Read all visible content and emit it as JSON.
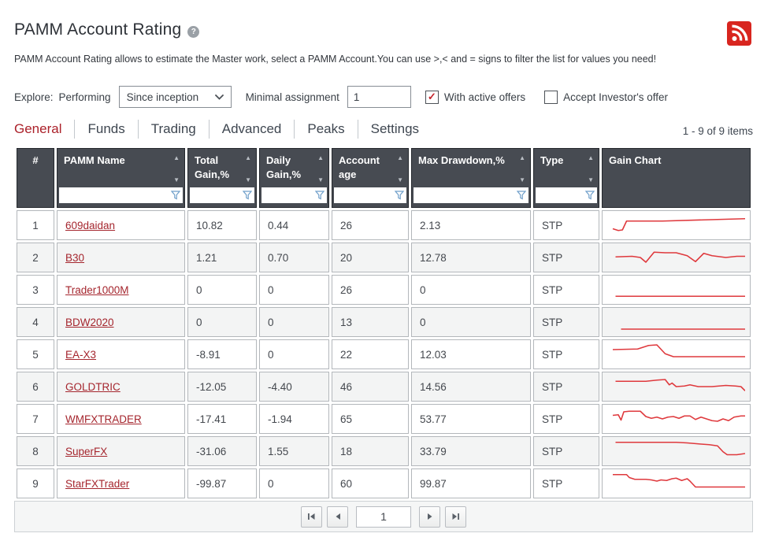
{
  "page": {
    "title": "PAMM Account Rating",
    "description": "PAMM Account Rating allows to estimate the Master work, select a PAMM Account.You can use >,< and = signs to filter the list for values you need!"
  },
  "filters": {
    "explore_label": "Explore:",
    "performing_label": "Performing",
    "period_selected": "Since inception",
    "minimal_assignment_label": "Minimal assignment",
    "minimal_assignment_value": "1",
    "with_active_offers": {
      "label": "With active offers",
      "checked": true,
      "check_glyph": "✓"
    },
    "accept_investors_offer": {
      "label": "Accept Investor's offer",
      "checked": false,
      "check_glyph": "✓"
    }
  },
  "tabs": [
    {
      "label": "General",
      "active": true
    },
    {
      "label": "Funds",
      "active": false
    },
    {
      "label": "Trading",
      "active": false
    },
    {
      "label": "Advanced",
      "active": false
    },
    {
      "label": "Peaks",
      "active": false
    },
    {
      "label": "Settings",
      "active": false
    }
  ],
  "items_count": "1 - 9 of 9 items",
  "table": {
    "columns": [
      {
        "label": "#",
        "sortable": false,
        "filterable": false
      },
      {
        "label": "PAMM Name",
        "sortable": true,
        "filterable": true
      },
      {
        "label": "Total Gain,%",
        "sortable": true,
        "filterable": true
      },
      {
        "label": "Daily Gain,%",
        "sortable": true,
        "filterable": true
      },
      {
        "label": "Account age",
        "sortable": true,
        "filterable": true
      },
      {
        "label": "Max Drawdown,%",
        "sortable": true,
        "filterable": true
      },
      {
        "label": "Type",
        "sortable": true,
        "filterable": true
      },
      {
        "label": "Gain Chart",
        "sortable": false,
        "filterable": false
      }
    ],
    "sort_icons": {
      "asc": "▲",
      "desc": "▼"
    },
    "rows": [
      {
        "num": "1",
        "name": "609daidan",
        "total_gain": "10.82",
        "daily_gain": "0.44",
        "account_age": "26",
        "max_drawdown": "2.13",
        "type": "STP",
        "spark": [
          [
            4,
            26
          ],
          [
            8,
            29
          ],
          [
            11,
            28
          ],
          [
            14,
            13
          ],
          [
            40,
            13
          ],
          [
            70,
            11
          ],
          [
            100,
            9
          ]
        ]
      },
      {
        "num": "2",
        "name": "B30",
        "total_gain": "1.21",
        "daily_gain": "0.70",
        "account_age": "20",
        "max_drawdown": "12.78",
        "type": "STP",
        "spark": [
          [
            6,
            19
          ],
          [
            18,
            18
          ],
          [
            24,
            20
          ],
          [
            28,
            28
          ],
          [
            34,
            11
          ],
          [
            42,
            12
          ],
          [
            50,
            12
          ],
          [
            58,
            17
          ],
          [
            64,
            27
          ],
          [
            70,
            13
          ],
          [
            76,
            17
          ],
          [
            86,
            20
          ],
          [
            94,
            18
          ],
          [
            100,
            18
          ]
        ]
      },
      {
        "num": "3",
        "name": "Trader1000M",
        "total_gain": "0",
        "daily_gain": "0",
        "account_age": "26",
        "max_drawdown": "0",
        "type": "STP",
        "spark": [
          [
            6,
            31
          ],
          [
            100,
            31
          ]
        ]
      },
      {
        "num": "4",
        "name": "BDW2020",
        "total_gain": "0",
        "daily_gain": "0",
        "account_age": "13",
        "max_drawdown": "0",
        "type": "STP",
        "spark": [
          [
            10,
            32
          ],
          [
            100,
            32
          ]
        ]
      },
      {
        "num": "5",
        "name": "EA-X3",
        "total_gain": "-8.91",
        "daily_gain": "0",
        "account_age": "22",
        "max_drawdown": "12.03",
        "type": "STP",
        "spark": [
          [
            4,
            12
          ],
          [
            22,
            11
          ],
          [
            30,
            5
          ],
          [
            36,
            4
          ],
          [
            42,
            19
          ],
          [
            48,
            24
          ],
          [
            100,
            24
          ]
        ]
      },
      {
        "num": "6",
        "name": "GOLDTRIC",
        "total_gain": "-12.05",
        "daily_gain": "-4.40",
        "account_age": "46",
        "max_drawdown": "14.56",
        "type": "STP",
        "spark": [
          [
            6,
            11
          ],
          [
            28,
            11
          ],
          [
            36,
            9
          ],
          [
            42,
            8
          ],
          [
            45,
            17
          ],
          [
            47,
            14
          ],
          [
            50,
            20
          ],
          [
            56,
            19
          ],
          [
            60,
            17
          ],
          [
            66,
            20
          ],
          [
            76,
            20
          ],
          [
            86,
            18
          ],
          [
            93,
            19
          ],
          [
            97,
            20
          ],
          [
            100,
            27
          ]
        ]
      },
      {
        "num": "7",
        "name": "WMFXTRADER",
        "total_gain": "-17.41",
        "daily_gain": "-1.94",
        "account_age": "65",
        "max_drawdown": "53.77",
        "type": "STP",
        "spark": [
          [
            4,
            14
          ],
          [
            8,
            13
          ],
          [
            10,
            22
          ],
          [
            12,
            8
          ],
          [
            16,
            7
          ],
          [
            24,
            7
          ],
          [
            28,
            16
          ],
          [
            32,
            19
          ],
          [
            36,
            17
          ],
          [
            40,
            20
          ],
          [
            44,
            17
          ],
          [
            48,
            16
          ],
          [
            52,
            19
          ],
          [
            56,
            15
          ],
          [
            60,
            15
          ],
          [
            64,
            21
          ],
          [
            68,
            17
          ],
          [
            72,
            20
          ],
          [
            76,
            23
          ],
          [
            80,
            24
          ],
          [
            84,
            20
          ],
          [
            88,
            23
          ],
          [
            92,
            17
          ],
          [
            97,
            15
          ],
          [
            100,
            15
          ]
        ]
      },
      {
        "num": "8",
        "name": "SuperFX",
        "total_gain": "-31.06",
        "daily_gain": "1.55",
        "account_age": "18",
        "max_drawdown": "33.79",
        "type": "STP",
        "spark": [
          [
            6,
            5
          ],
          [
            50,
            5
          ],
          [
            58,
            6
          ],
          [
            68,
            8
          ],
          [
            74,
            9
          ],
          [
            80,
            11
          ],
          [
            84,
            21
          ],
          [
            87,
            26
          ],
          [
            94,
            26
          ],
          [
            100,
            24
          ]
        ]
      },
      {
        "num": "9",
        "name": "StarFXTrader",
        "total_gain": "-99.87",
        "daily_gain": "0",
        "account_age": "60",
        "max_drawdown": "99.87",
        "type": "STP",
        "spark": [
          [
            4,
            5
          ],
          [
            14,
            5
          ],
          [
            16,
            10
          ],
          [
            20,
            13
          ],
          [
            28,
            13
          ],
          [
            32,
            14
          ],
          [
            36,
            16
          ],
          [
            39,
            14
          ],
          [
            43,
            15
          ],
          [
            47,
            12
          ],
          [
            50,
            11
          ],
          [
            54,
            15
          ],
          [
            58,
            12
          ],
          [
            60,
            16
          ],
          [
            64,
            26
          ],
          [
            100,
            26
          ]
        ]
      }
    ]
  },
  "pagination": {
    "page_value": "1"
  },
  "colors": {
    "accent_red": "#ab212a",
    "link_red": "#a5262e",
    "rss_red": "#d8251f",
    "spark_red": "#df393d",
    "header_bg": "#474b52",
    "check_red": "#c4242c",
    "funnel_blue": "#6f9fca"
  }
}
